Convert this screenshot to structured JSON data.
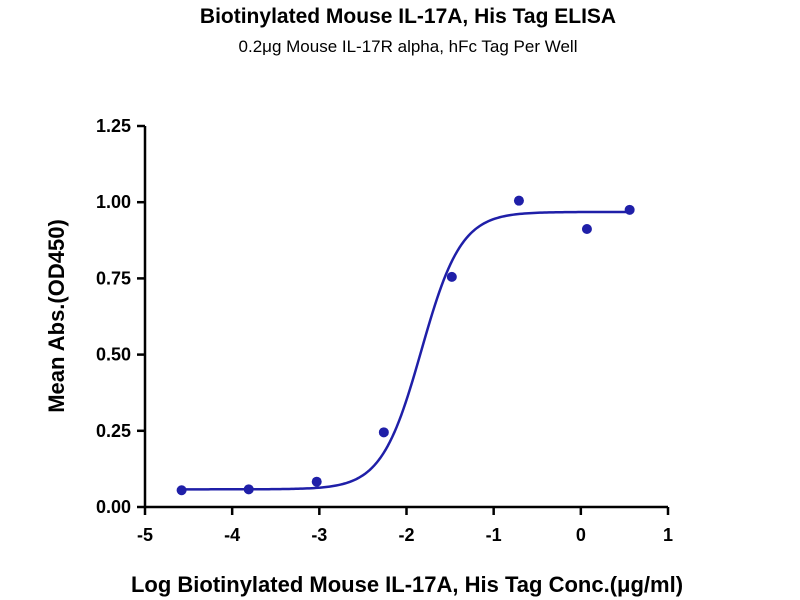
{
  "chart_data": {
    "type": "scatter",
    "title": "Biotinylated Mouse IL-17A, His Tag ELISA",
    "subtitle": "0.2μg Mouse IL-17R alpha, hFc Tag Per Well",
    "xlabel": "Log Biotinylated Mouse IL-17A, His Tag Conc.(μg/ml)",
    "ylabel": "Mean Abs.(OD450)",
    "xlim": [
      -5,
      1
    ],
    "ylim": [
      0,
      1.25
    ],
    "x_ticks": [
      "-5",
      "-4",
      "-3",
      "-2",
      "-1",
      "0",
      "1"
    ],
    "y_ticks": [
      "0.00",
      "0.25",
      "0.50",
      "0.75",
      "1.00",
      "1.25"
    ],
    "grid": false,
    "color": "#1f1fa8",
    "points": [
      {
        "x": -4.58,
        "y": 0.055
      },
      {
        "x": -3.81,
        "y": 0.058
      },
      {
        "x": -3.03,
        "y": 0.083
      },
      {
        "x": -2.26,
        "y": 0.245
      },
      {
        "x": -1.48,
        "y": 0.755
      },
      {
        "x": -0.71,
        "y": 1.005
      },
      {
        "x": 0.07,
        "y": 0.912
      },
      {
        "x": 0.56,
        "y": 0.975
      }
    ],
    "fit": {
      "bottom": 0.058,
      "top": 0.968,
      "logEC50": -1.83,
      "hill": 1.9,
      "x_range": [
        -4.58,
        0.56
      ]
    }
  }
}
